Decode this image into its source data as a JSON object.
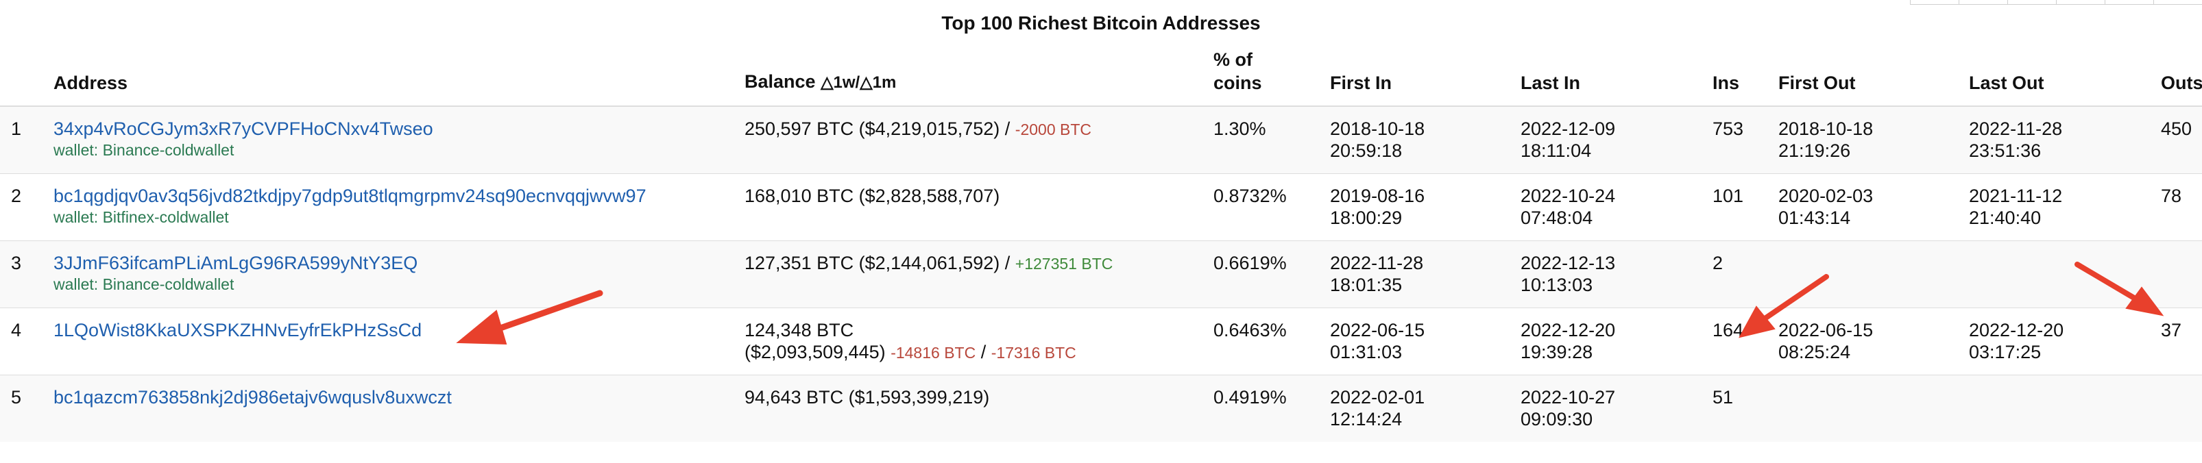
{
  "title": "Top 100 Richest Bitcoin Addresses",
  "accent": {
    "link": "#1f5fae",
    "wallet": "#2b7a52",
    "negative": "#b8473b",
    "positive": "#3f8a3a",
    "annotation": "#e8402c"
  },
  "headers": {
    "rank": "",
    "address": "Address",
    "balance": "Balance",
    "balance_sub": "△1w/△1m",
    "pct_line1": "% of",
    "pct_line2": "coins",
    "first_in": "First In",
    "last_in": "Last In",
    "ins": "Ins",
    "first_out": "First Out",
    "last_out": "Last Out",
    "outs": "Outs"
  },
  "rows": [
    {
      "rank": "1",
      "address": "34xp4vRoCGJym3xR7yCVPFHoCNxv4Twseo",
      "wallet": "wallet: Binance-coldwallet",
      "balance": "250,597 BTC ($4,219,015,752) /",
      "balance_line2": "",
      "delta1": "-2000 BTC",
      "delta_sep": "",
      "delta2": "",
      "pct": "1.30%",
      "first_in_date": "2018-10-18",
      "first_in_time": "20:59:18",
      "last_in_date": "2022-12-09",
      "last_in_time": "18:11:04",
      "ins": "753",
      "first_out_date": "2018-10-18",
      "first_out_time": "21:19:26",
      "last_out_date": "2022-11-28",
      "last_out_time": "23:51:36",
      "outs": "450"
    },
    {
      "rank": "2",
      "address": "bc1qgdjqv0av3q56jvd82tkdjpy7gdp9ut8tlqmgrpmv24sq90ecnvqqjwvw97",
      "wallet": "wallet: Bitfinex-coldwallet",
      "balance": "168,010 BTC ($2,828,588,707)",
      "balance_line2": "",
      "delta1": "",
      "delta_sep": "",
      "delta2": "",
      "pct": "0.8732%",
      "first_in_date": "2019-08-16",
      "first_in_time": "18:00:29",
      "last_in_date": "2022-10-24",
      "last_in_time": "07:48:04",
      "ins": "101",
      "first_out_date": "2020-02-03",
      "first_out_time": "01:43:14",
      "last_out_date": "2021-11-12",
      "last_out_time": "21:40:40",
      "outs": "78"
    },
    {
      "rank": "3",
      "address": "3JJmF63ifcamPLiAmLgG96RA599yNtY3EQ",
      "wallet": "wallet: Binance-coldwallet",
      "balance": "127,351 BTC ($2,144,061,592) /",
      "balance_line2": "",
      "delta1": "+127351 BTC",
      "delta_sep": "",
      "delta2": "",
      "pct": "0.6619%",
      "first_in_date": "2022-11-28",
      "first_in_time": "18:01:35",
      "last_in_date": "2022-12-13",
      "last_in_time": "10:13:03",
      "ins": "2",
      "first_out_date": "",
      "first_out_time": "",
      "last_out_date": "",
      "last_out_time": "",
      "outs": ""
    },
    {
      "rank": "4",
      "address": "1LQoWist8KkaUXSPKZHNvEyfrEkPHzSsCd",
      "wallet": "",
      "balance": "124,348 BTC",
      "balance_line2": "($2,093,509,445)",
      "delta1": "-14816 BTC",
      "delta_sep": "/",
      "delta2": "-17316 BTC",
      "pct": "0.6463%",
      "first_in_date": "2022-06-15",
      "first_in_time": "01:31:03",
      "last_in_date": "2022-12-20",
      "last_in_time": "19:39:28",
      "ins": "164",
      "first_out_date": "2022-06-15",
      "first_out_time": "08:25:24",
      "last_out_date": "2022-12-20",
      "last_out_time": "03:17:25",
      "outs": "37"
    },
    {
      "rank": "5",
      "address": "bc1qazcm763858nkj2dj986etajv6wquslv8uxwczt",
      "wallet": "",
      "balance": "94,643 BTC ($1,593,399,219)",
      "balance_line2": "",
      "delta1": "",
      "delta_sep": "",
      "delta2": "",
      "pct": "0.4919%",
      "first_in_date": "2022-02-01",
      "first_in_time": "12:14:24",
      "last_in_date": "2022-10-27",
      "last_in_time": "09:09:30",
      "ins": "51",
      "first_out_date": "",
      "first_out_time": "",
      "last_out_date": "",
      "last_out_time": "",
      "outs": ""
    }
  ]
}
